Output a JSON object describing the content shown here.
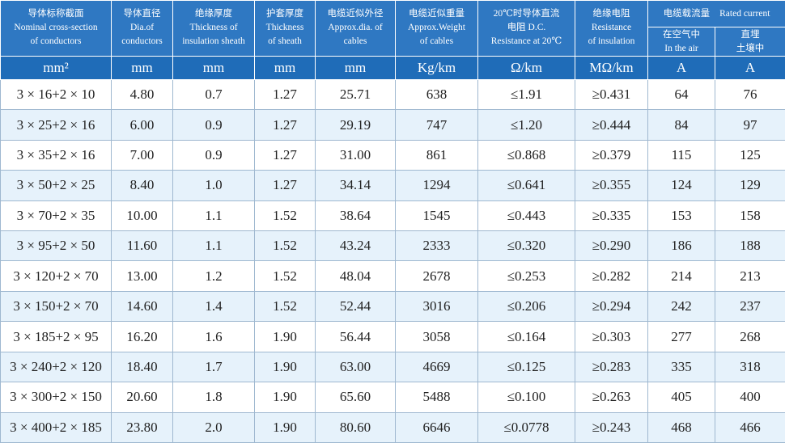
{
  "header": {
    "columns": [
      [
        "导体标称截面",
        "Nominal cross-section",
        "of conductors"
      ],
      [
        "导体直径",
        "Dia.of",
        "conductors"
      ],
      [
        "绝缘厚度",
        "Thickness of",
        "insulation sheath"
      ],
      [
        "护套厚度",
        "Thickness",
        "of sheath"
      ],
      [
        "电缆近似外径",
        "Approx.dia. of",
        "cables"
      ],
      [
        "电缆近似重量",
        "Approx.Weight",
        "of cables"
      ],
      [
        "20℃时导体直流",
        "电阻 D.C.",
        "Resistance at 20℃"
      ],
      [
        "绝缘电阻",
        "Resistance",
        "of insulation"
      ]
    ],
    "group": [
      "电缆载流量",
      "Rated current"
    ],
    "sub": [
      [
        "在空气中",
        "In the air"
      ],
      [
        "直埋",
        "土壤中"
      ]
    ]
  },
  "units": [
    "mm²",
    "mm",
    "mm",
    "mm",
    "mm",
    "Kg/km",
    "Ω/km",
    "MΩ/km",
    "A",
    "A"
  ],
  "rows": [
    [
      "3 × 16+2 × 10",
      "4.80",
      "0.7",
      "1.27",
      "25.71",
      "638",
      "≤1.91",
      "≥0.431",
      "64",
      "76"
    ],
    [
      "3 × 25+2 × 16",
      "6.00",
      "0.9",
      "1.27",
      "29.19",
      "747",
      "≤1.20",
      "≥0.444",
      "84",
      "97"
    ],
    [
      "3 × 35+2 × 16",
      "7.00",
      "0.9",
      "1.27",
      "31.00",
      "861",
      "≤0.868",
      "≥0.379",
      "115",
      "125"
    ],
    [
      "3 × 50+2 × 25",
      "8.40",
      "1.0",
      "1.27",
      "34.14",
      "1294",
      "≤0.641",
      "≥0.355",
      "124",
      "129"
    ],
    [
      "3 × 70+2 × 35",
      "10.00",
      "1.1",
      "1.52",
      "38.64",
      "1545",
      "≤0.443",
      "≥0.335",
      "153",
      "158"
    ],
    [
      "3 × 95+2 × 50",
      "11.60",
      "1.1",
      "1.52",
      "43.24",
      "2333",
      "≤0.320",
      "≥0.290",
      "186",
      "188"
    ],
    [
      "3 × 120+2 × 70",
      "13.00",
      "1.2",
      "1.52",
      "48.04",
      "2678",
      "≤0.253",
      "≥0.282",
      "214",
      "213"
    ],
    [
      "3 × 150+2 × 70",
      "14.60",
      "1.4",
      "1.52",
      "52.44",
      "3016",
      "≤0.206",
      "≥0.294",
      "242",
      "237"
    ],
    [
      "3 × 185+2 × 95",
      "16.20",
      "1.6",
      "1.90",
      "56.44",
      "3058",
      "≤0.164",
      "≥0.303",
      "277",
      "268"
    ],
    [
      "3 × 240+2 × 120",
      "18.40",
      "1.7",
      "1.90",
      "63.00",
      "4669",
      "≤0.125",
      "≥0.283",
      "335",
      "318"
    ],
    [
      "3 × 300+2 × 150",
      "20.60",
      "1.8",
      "1.90",
      "65.60",
      "5488",
      "≤0.100",
      "≥0.263",
      "405",
      "400"
    ],
    [
      "3 × 400+2 × 185",
      "23.80",
      "2.0",
      "1.90",
      "80.60",
      "6646",
      "≤0.0778",
      "≥0.243",
      "468",
      "466"
    ]
  ]
}
